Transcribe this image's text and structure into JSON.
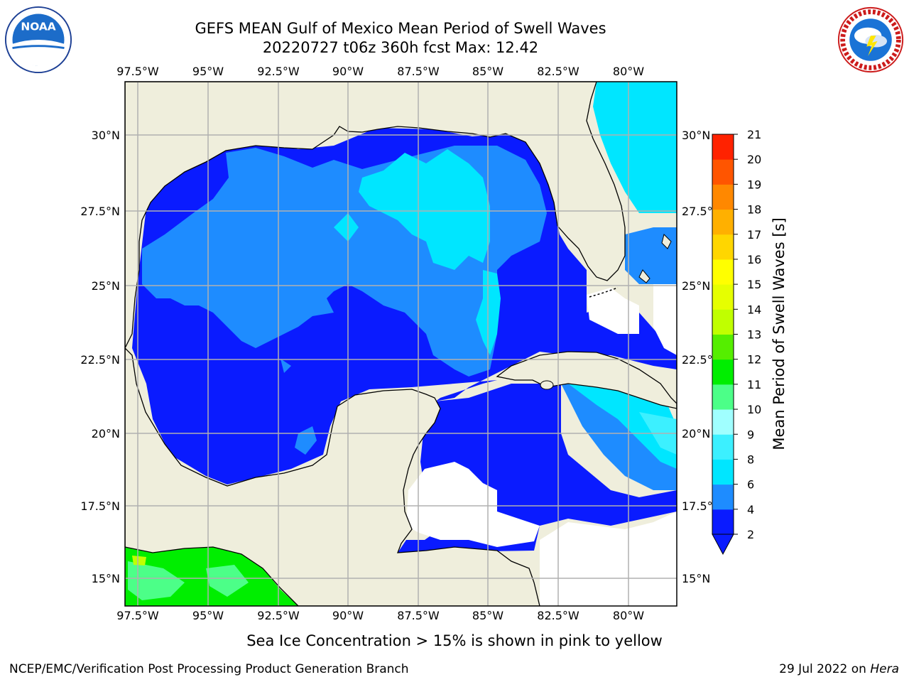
{
  "header": {
    "title_line1": "GEFS MEAN Gulf of Mexico Mean Period of Swell Waves",
    "title_line2": "20220727 t06z 360h fcst   Max: 12.42"
  },
  "logos": {
    "left": {
      "icon": "noaa-logo",
      "text": "NOAA"
    },
    "right": {
      "icon": "nws-logo",
      "text": "NATIONAL WEATHER SERVICE"
    }
  },
  "map": {
    "lon_labels": [
      "97.5°W",
      "95°W",
      "92.5°W",
      "90°W",
      "87.5°W",
      "85°W",
      "82.5°W",
      "80°W"
    ],
    "lat_labels_left": [
      "30°N",
      "27.5°N",
      "25°N",
      "22.5°N",
      "20°N",
      "17.5°N",
      "15°N"
    ],
    "lat_labels_right": [
      "30°N",
      "27.5°N",
      "25°N",
      "22.5°N",
      "20°N",
      "17.5°N",
      "15°N"
    ],
    "colors": {
      "land": "#efeedc",
      "no_data": "#ffffff",
      "grid": "#b0b0b0",
      "coast": "#000000"
    }
  },
  "colorbar": {
    "label": "Mean Period of Swell Waves [s]",
    "ticks": [
      "2",
      "4",
      "6",
      "8",
      "9",
      "10",
      "11",
      "12",
      "13",
      "14",
      "15",
      "16",
      "17",
      "18",
      "19",
      "20",
      "21"
    ],
    "colors": [
      "#0a1bff",
      "#1e8cff",
      "#00e6ff",
      "#3cf0ff",
      "#a0ffff",
      "#4cff88",
      "#00ee00",
      "#55ee00",
      "#c0ff00",
      "#e6ff00",
      "#ffff00",
      "#ffd600",
      "#ffb000",
      "#ff8800",
      "#ff5500",
      "#ff2200"
    ],
    "under_color": "#0a1bff"
  },
  "footer": {
    "ice_note": "Sea Ice Concentration > 15% is shown in pink to yellow",
    "left": "NCEP/EMC/Verification Post Processing Product Generation Branch",
    "right_date": "29 Jul 2022 on ",
    "right_host": "Hera"
  }
}
